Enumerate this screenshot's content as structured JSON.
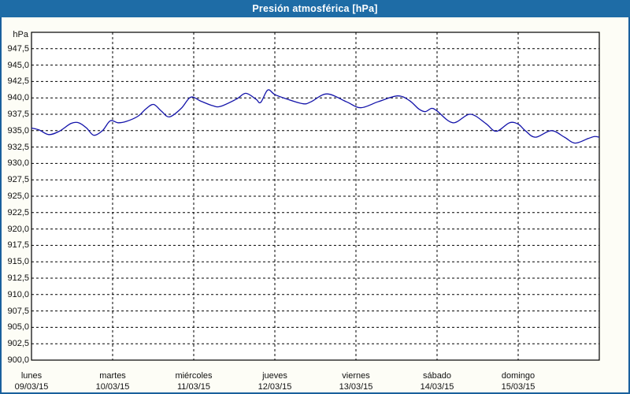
{
  "window": {
    "title": "Presión atmosférica [hPa]",
    "colors": {
      "titlebar_bg": "#1e6ca6",
      "border": "#19609d",
      "background": "#fdfdf6",
      "plot_background": "#ffffff",
      "grid": "#000000",
      "line": "#1414aa",
      "label_text": "#111111",
      "title_text": "#ffffff"
    }
  },
  "chart_data": {
    "type": "line",
    "title": "Presión atmosférica [hPa]",
    "ylabel": "hPa",
    "ylim": [
      900,
      950
    ],
    "ytick_step": 2.5,
    "ytick_labels": [
      "947,5",
      "945,0",
      "942,5",
      "940,0",
      "937,5",
      "935,0",
      "932,5",
      "930,0",
      "927,5",
      "925,0",
      "922,5",
      "920,0",
      "917,5",
      "915,0",
      "912,5",
      "910,0",
      "907,5",
      "905,0",
      "902,5",
      "900,0"
    ],
    "grid": "dashed",
    "legend_position": "none",
    "x_axis": {
      "hours_total": 168,
      "days": [
        {
          "name": "lunes",
          "date": "09/03/15"
        },
        {
          "name": "martes",
          "date": "10/03/15"
        },
        {
          "name": "miércoles",
          "date": "11/03/15"
        },
        {
          "name": "jueves",
          "date": "12/03/15"
        },
        {
          "name": "viernes",
          "date": "13/03/15"
        },
        {
          "name": "sábado",
          "date": "14/03/15"
        },
        {
          "name": "domingo",
          "date": "15/03/15"
        }
      ]
    },
    "series": [
      {
        "name": "Presión atmosférica",
        "unit": "hPa",
        "color": "#1414aa",
        "points_hours_hpa": [
          [
            0,
            935.4
          ],
          [
            2.3,
            935.1
          ],
          [
            5.1,
            934.4
          ],
          [
            8.2,
            934.9
          ],
          [
            11.7,
            936.1
          ],
          [
            14,
            936.2
          ],
          [
            16.3,
            935.4
          ],
          [
            18.4,
            934.3
          ],
          [
            21,
            935.0
          ],
          [
            23.3,
            936.5
          ],
          [
            25.6,
            936.2
          ],
          [
            28,
            936.4
          ],
          [
            31.5,
            937.2
          ],
          [
            33.8,
            938.3
          ],
          [
            36.1,
            939.0
          ],
          [
            38.4,
            938.0
          ],
          [
            40.8,
            937.1
          ],
          [
            44.3,
            938.4
          ],
          [
            47.1,
            940.1
          ],
          [
            50.1,
            939.5
          ],
          [
            53.6,
            938.8
          ],
          [
            55.9,
            938.7
          ],
          [
            60.6,
            939.8
          ],
          [
            63.4,
            940.7
          ],
          [
            66.4,
            939.8
          ],
          [
            67.8,
            939.3
          ],
          [
            69.9,
            941.2
          ],
          [
            72,
            940.5
          ],
          [
            75.7,
            939.8
          ],
          [
            80.4,
            939.1
          ],
          [
            82.7,
            939.4
          ],
          [
            87.4,
            940.6
          ],
          [
            93.2,
            939.4
          ],
          [
            97.4,
            938.5
          ],
          [
            102.5,
            939.4
          ],
          [
            108.3,
            940.3
          ],
          [
            111.8,
            939.6
          ],
          [
            114.6,
            938.3
          ],
          [
            116.5,
            937.9
          ],
          [
            118.4,
            938.4
          ],
          [
            120,
            938.0
          ],
          [
            124.7,
            936.2
          ],
          [
            129.8,
            937.5
          ],
          [
            134.4,
            936.1
          ],
          [
            137.5,
            934.9
          ],
          [
            141.4,
            936.2
          ],
          [
            144,
            936.0
          ],
          [
            146.1,
            935.0
          ],
          [
            149.1,
            934.0
          ],
          [
            153.8,
            935.0
          ],
          [
            157.7,
            934.0
          ],
          [
            160.8,
            933.1
          ],
          [
            164.7,
            933.8
          ],
          [
            166.6,
            934.1
          ],
          [
            168,
            934.0
          ]
        ]
      }
    ]
  }
}
